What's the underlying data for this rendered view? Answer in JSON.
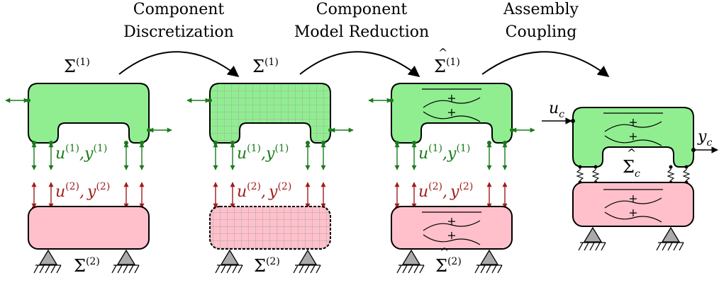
{
  "steps": [
    {
      "line1": "Component",
      "line2": "Discretization"
    },
    {
      "line1": "Component",
      "line2": "Model Reduction"
    },
    {
      "line1": "Assembly",
      "line2": "Coupling"
    }
  ],
  "symbols": {
    "sigma": "Σ",
    "sup1": "(1)",
    "sup2": "(2)",
    "u": "u",
    "y": "y",
    "comma": ",",
    "c": "c"
  },
  "colors": {
    "green_fill": "#90ee90",
    "pink_fill": "#ffc0cb",
    "green_io": "#1a7a1a",
    "red_io": "#a01c1c",
    "grid": "#aaaaaa",
    "support": "#aaaaaa"
  }
}
